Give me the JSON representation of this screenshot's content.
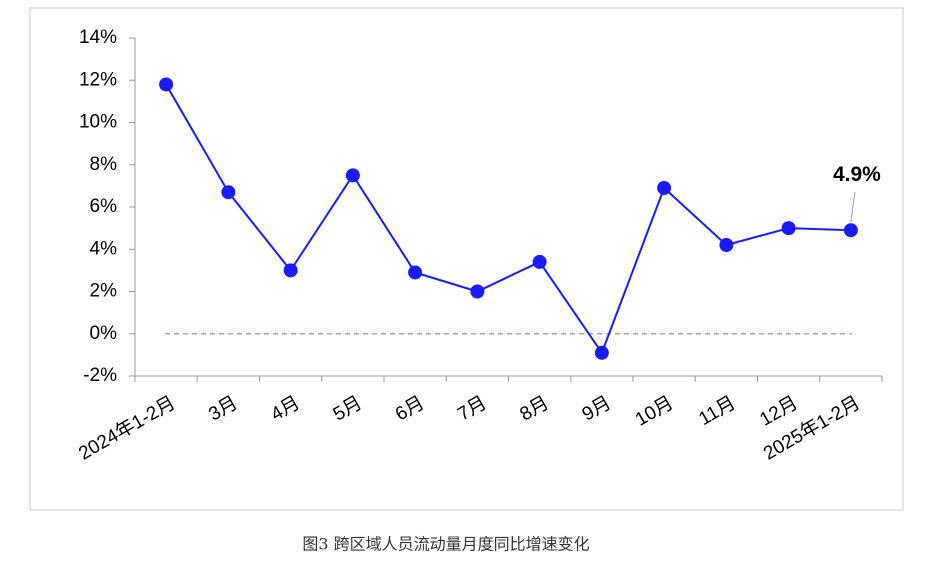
{
  "chart_data": {
    "type": "line",
    "caption": "图3 跨区域人员流动量月度同比增速变化",
    "categories": [
      "2024年1-2月",
      "3月",
      "4月",
      "5月",
      "6月",
      "7月",
      "8月",
      "9月",
      "10月",
      "11月",
      "12月",
      "2025年1-2月"
    ],
    "series": [
      {
        "name": "跨区域人员流动量同比增速",
        "color": "#1a1aff",
        "values": [
          11.8,
          6.7,
          3.0,
          7.5,
          2.9,
          2.0,
          3.4,
          -0.9,
          6.9,
          4.2,
          5.0,
          4.9
        ],
        "value_labels": [
          null,
          null,
          null,
          null,
          null,
          null,
          null,
          null,
          null,
          null,
          null,
          "4.9%"
        ]
      }
    ],
    "ylim": [
      -2,
      14
    ],
    "yticks": [
      {
        "value": -2,
        "label": "-2%"
      },
      {
        "value": 0,
        "label": "0%"
      },
      {
        "value": 2,
        "label": "2%"
      },
      {
        "value": 4,
        "label": "4%"
      },
      {
        "value": 6,
        "label": "6%"
      },
      {
        "value": 8,
        "label": "8%"
      },
      {
        "value": 10,
        "label": "10%"
      },
      {
        "value": 12,
        "label": "12%"
      },
      {
        "value": 14,
        "label": "14%"
      }
    ],
    "reference_line": 0
  }
}
